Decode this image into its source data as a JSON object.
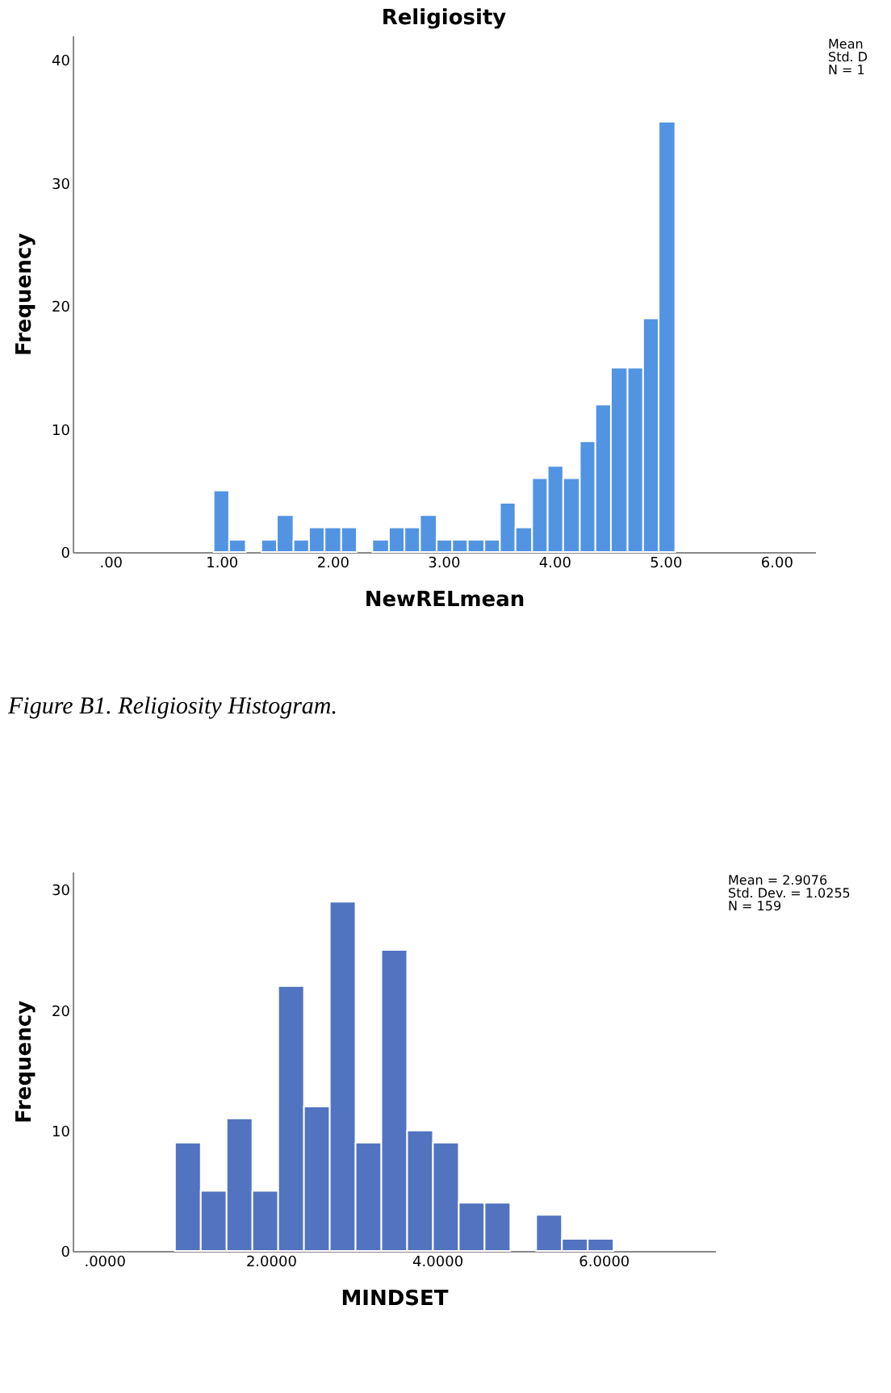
{
  "chart_data": [
    {
      "type": "histogram",
      "title": "Religiosity",
      "xlabel": "NewRELmean",
      "ylabel": "Frequency",
      "color": "#5294e2",
      "bins": [
        0.93,
        1.07,
        1.22,
        1.36,
        1.5,
        1.65,
        1.79,
        1.93,
        2.08,
        2.22,
        2.36,
        2.51,
        2.65,
        2.79,
        2.94,
        3.08,
        3.22,
        3.37,
        3.51,
        3.65,
        3.8,
        3.94,
        4.08,
        4.23,
        4.37,
        4.51,
        4.66,
        4.8,
        4.94,
        5.09
      ],
      "values": [
        5,
        1,
        0,
        1,
        3,
        1,
        2,
        2,
        2,
        0,
        1,
        2,
        2,
        3,
        1,
        1,
        1,
        1,
        4,
        2,
        6,
        7,
        6,
        9,
        12,
        15,
        15,
        19,
        35
      ],
      "xlim": [
        -0.34,
        6.35
      ],
      "xticks": [
        {
          "value": 0,
          "label": ".00"
        },
        {
          "value": 1,
          "label": "1.00"
        },
        {
          "value": 2,
          "label": "2.00"
        },
        {
          "value": 3,
          "label": "3.00"
        },
        {
          "value": 4,
          "label": "4.00"
        },
        {
          "value": 5,
          "label": "5.00"
        },
        {
          "value": 6,
          "label": "6.00"
        }
      ],
      "ylim": [
        0,
        42
      ],
      "yticks": [
        0,
        10,
        20,
        30,
        40
      ],
      "grid": false,
      "annotations": [
        "Mean\nStd. D\nN = 1",
        "Figure B1. Religiosity Histogram."
      ]
    },
    {
      "type": "histogram",
      "xlabel": "MINDSET",
      "ylabel": "Frequency",
      "color": "#5273c0",
      "bins": [
        0.85,
        1.16,
        1.47,
        1.78,
        2.09,
        2.4,
        2.71,
        3.02,
        3.33,
        3.64,
        3.95,
        4.26,
        4.57,
        4.88,
        5.19,
        5.5,
        5.81,
        6.12
      ],
      "values": [
        9,
        5,
        11,
        5,
        22,
        12,
        29,
        9,
        25,
        10,
        9,
        4,
        4,
        0,
        3,
        1,
        1
      ],
      "xlim": [
        -0.38,
        7.34
      ],
      "xticks": [
        {
          "value": 0,
          "label": ".0000"
        },
        {
          "value": 2,
          "label": "2.0000"
        },
        {
          "value": 4,
          "label": "4.0000"
        },
        {
          "value": 6,
          "label": "6.0000"
        }
      ],
      "ylim": [
        0,
        31.5
      ],
      "yticks": [
        0,
        10,
        20,
        30
      ],
      "grid": false,
      "annotations": [
        "Mean = 2.9076\nStd. Dev. = 1.0255\nN = 159"
      ]
    }
  ]
}
